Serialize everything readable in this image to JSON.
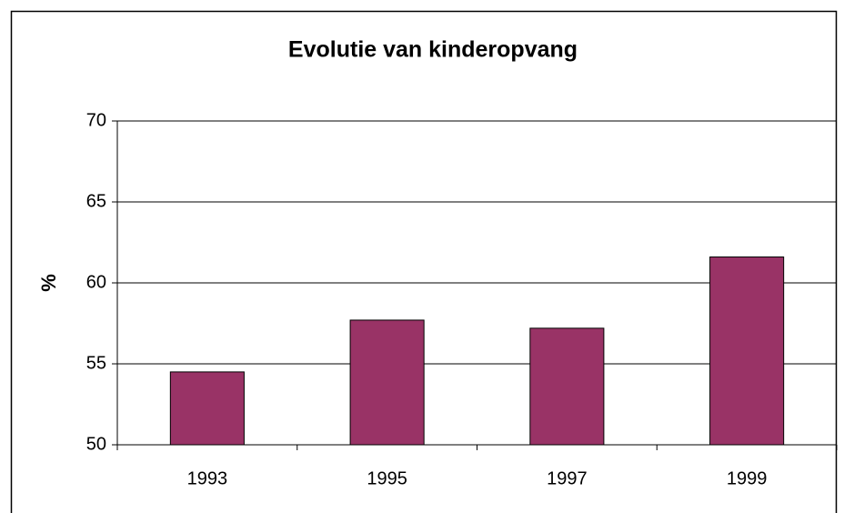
{
  "chart_data": {
    "type": "bar",
    "title": "Evolutie van kinderopvang",
    "y_label": "%",
    "categories": [
      "1993",
      "1995",
      "1997",
      "1999"
    ],
    "values": [
      54.5,
      57.7,
      57.2,
      61.6
    ],
    "color": "#993366",
    "ylim": [
      50,
      70
    ],
    "yticks": [
      50,
      55,
      60,
      65,
      70
    ],
    "grid": true
  }
}
